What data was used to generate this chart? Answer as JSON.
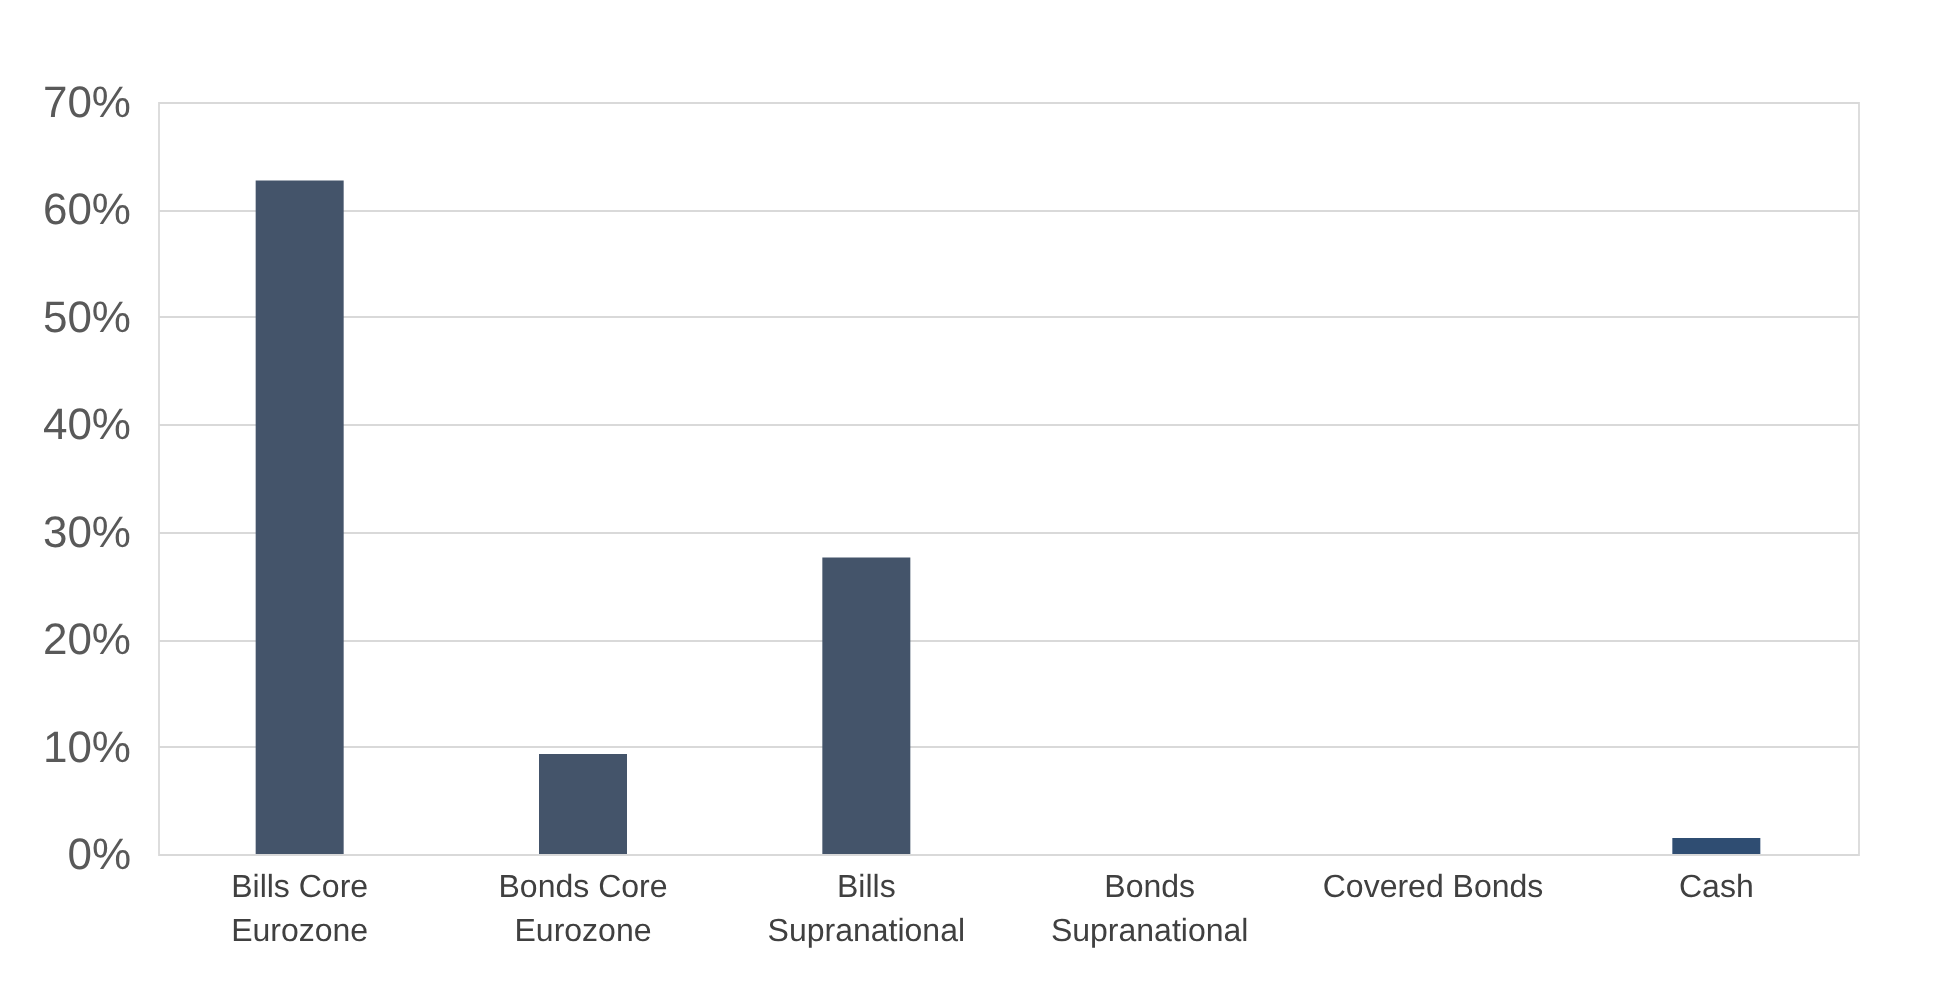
{
  "chart_data": {
    "type": "bar",
    "categories": [
      "Bills Core\nEurozone",
      "Bonds Core\nEurozone",
      "Bills\nSupranational",
      "Bonds\nSupranational",
      "Covered Bonds",
      "Cash"
    ],
    "values": [
      62.7,
      9.3,
      27.6,
      0,
      0,
      1.5
    ],
    "colors": [
      "#44546a",
      "#44546a",
      "#44546a",
      "#44546a",
      "#44546a",
      "#2f4d72"
    ],
    "ylim": [
      0,
      70
    ],
    "yticks": [
      {
        "value": 0,
        "label": "0%"
      },
      {
        "value": 10,
        "label": "10%"
      },
      {
        "value": 20,
        "label": "20%"
      },
      {
        "value": 30,
        "label": "30%"
      },
      {
        "value": 40,
        "label": "40%"
      },
      {
        "value": 50,
        "label": "50%"
      },
      {
        "value": 60,
        "label": "60%"
      },
      {
        "value": 70,
        "label": "70%"
      }
    ],
    "grid": "y",
    "legend": false
  }
}
